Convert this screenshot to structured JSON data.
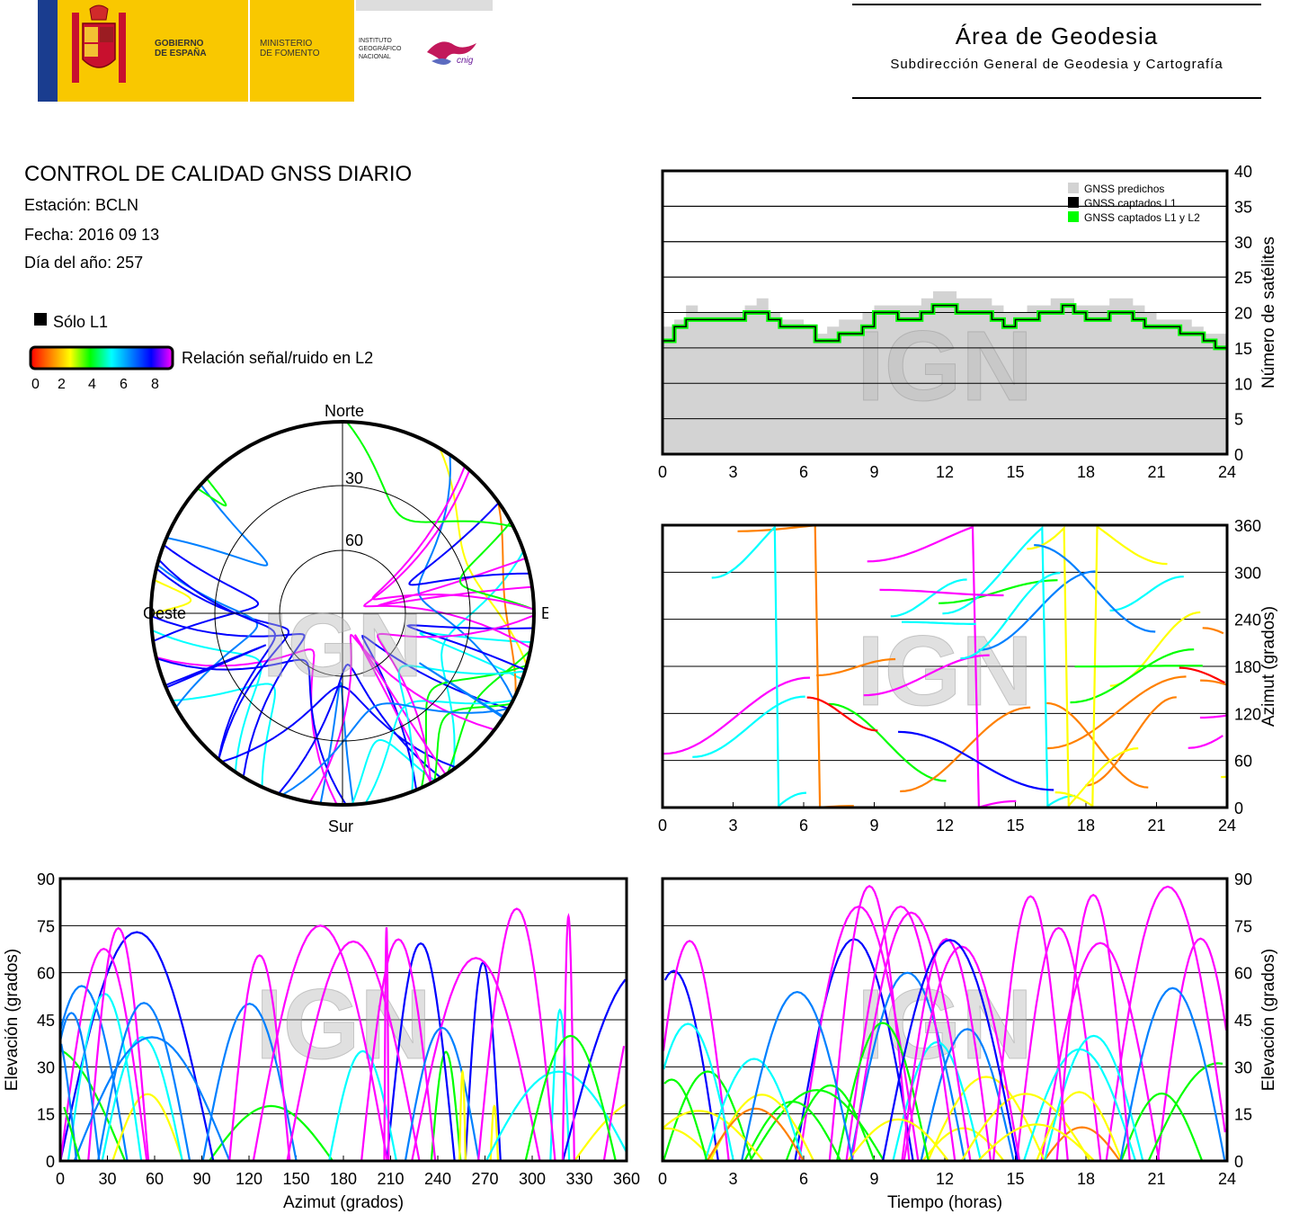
{
  "header": {
    "gobierno": "GOBIERNO\nDE ESPAÑA",
    "ministerio": "MINISTERIO\nDE FOMENTO",
    "instituto": "INSTITUTO\nGEOGRÁFICO\nNACIONAL",
    "cnig": "cnig",
    "area_title": "Área de Geodesia",
    "area_subtitle": "Subdirección General de Geodesia y Cartografía"
  },
  "info": {
    "title": "CONTROL DE CALIDAD GNSS DIARIO",
    "station": "Estación: BCLN",
    "date": "Fecha: 2016 09 13",
    "doy": "Día del año: 257"
  },
  "legend": {
    "solo_l1": "Sólo L1",
    "snr_label": "Relación señal/ruido en L2",
    "snr_ticks": [
      "0",
      "2",
      "4",
      "6",
      "8"
    ],
    "colors": [
      "#ff0000",
      "#ff8000",
      "#ffff00",
      "#00ff00",
      "#00ffff",
      "#0080ff",
      "#0000ff",
      "#ff00ff"
    ]
  },
  "watermark": "IGN",
  "chart_data": [
    {
      "type": "polar",
      "name": "skyplot",
      "directions": {
        "north": "Norte",
        "south": "Sur",
        "east": "Este",
        "west": "Oeste"
      },
      "elevation_rings": [
        "30",
        "60"
      ]
    },
    {
      "type": "step",
      "name": "satellite-count",
      "ylabel": "Número de satélites",
      "xlim": [
        0,
        24
      ],
      "ylim": [
        0,
        40
      ],
      "xticks": [
        "0",
        "3",
        "6",
        "9",
        "12",
        "15",
        "18",
        "21",
        "24"
      ],
      "yticks": [
        "0",
        "5",
        "10",
        "15",
        "20",
        "25",
        "30",
        "35",
        "40"
      ],
      "legend": [
        "GNSS predichos",
        "GNSS captados L1",
        "GNSS captados L1 y L2"
      ],
      "legend_colors": [
        "#d3d3d3",
        "#000000",
        "#00ff00"
      ],
      "series": [
        {
          "name": "GNSS predichos",
          "x": [
            0,
            0.5,
            1,
            1.5,
            2,
            2.5,
            3,
            3.5,
            4,
            4.5,
            5,
            5.5,
            6,
            6.5,
            7,
            7.5,
            8,
            8.5,
            9,
            9.5,
            10,
            10.5,
            11,
            11.5,
            12,
            12.5,
            13,
            13.5,
            14,
            14.5,
            15,
            15.5,
            16,
            16.5,
            17,
            17.5,
            18,
            18.5,
            19,
            19.5,
            20,
            20.5,
            21,
            21.5,
            22,
            22.5,
            23,
            23.5,
            24
          ],
          "values": [
            18,
            19,
            21,
            20,
            20,
            20,
            20,
            21,
            22,
            20,
            19,
            19,
            18,
            17,
            18,
            19,
            19,
            20,
            21,
            21,
            21,
            21,
            22,
            23,
            23,
            22,
            22,
            22,
            21,
            20,
            20,
            21,
            21,
            22,
            22,
            21,
            21,
            21,
            22,
            22,
            21,
            20,
            19,
            19,
            19,
            18,
            17,
            17,
            16
          ]
        },
        {
          "name": "GNSS captados L1 y L2",
          "x": [
            0,
            0.5,
            1,
            1.5,
            2,
            2.5,
            3,
            3.5,
            4,
            4.5,
            5,
            5.5,
            6,
            6.5,
            7,
            7.5,
            8,
            8.5,
            9,
            9.5,
            10,
            10.5,
            11,
            11.5,
            12,
            12.5,
            13,
            13.5,
            14,
            14.5,
            15,
            15.5,
            16,
            16.5,
            17,
            17.5,
            18,
            18.5,
            19,
            19.5,
            20,
            20.5,
            21,
            21.5,
            22,
            22.5,
            23,
            23.5,
            24
          ],
          "values": [
            16,
            18,
            19,
            19,
            19,
            19,
            19,
            20,
            20,
            19,
            18,
            18,
            18,
            16,
            16,
            17,
            17,
            18,
            20,
            20,
            19,
            19,
            20,
            21,
            21,
            20,
            20,
            20,
            19,
            18,
            19,
            19,
            20,
            20,
            21,
            20,
            19,
            19,
            20,
            20,
            19,
            18,
            18,
            18,
            17,
            17,
            16,
            15,
            15
          ]
        }
      ]
    },
    {
      "type": "scatter",
      "name": "azimuth-vs-time",
      "ylabel": "Azimut (grados)",
      "xlim": [
        0,
        24
      ],
      "ylim": [
        0,
        360
      ],
      "xticks": [
        "0",
        "3",
        "6",
        "9",
        "12",
        "15",
        "18",
        "21",
        "24"
      ],
      "yticks": [
        "0",
        "60",
        "120",
        "180",
        "240",
        "300",
        "360"
      ]
    },
    {
      "type": "scatter",
      "name": "elevation-vs-azimuth",
      "xlabel": "Azimut (grados)",
      "ylabel": "Elevación (grados)",
      "xlim": [
        0,
        360
      ],
      "ylim": [
        0,
        90
      ],
      "xticks": [
        "0",
        "30",
        "60",
        "90",
        "120",
        "150",
        "180",
        "210",
        "240",
        "270",
        "300",
        "330",
        "360"
      ],
      "yticks": [
        "0",
        "15",
        "30",
        "45",
        "60",
        "75",
        "90"
      ]
    },
    {
      "type": "scatter",
      "name": "elevation-vs-time",
      "xlabel": "Tiempo (horas)",
      "ylabel": "Elevación (grados)",
      "xlim": [
        0,
        24
      ],
      "ylim": [
        0,
        90
      ],
      "xticks": [
        "0",
        "3",
        "6",
        "9",
        "12",
        "15",
        "18",
        "21",
        "24"
      ],
      "yticks": [
        "0",
        "15",
        "30",
        "45",
        "60",
        "75",
        "90"
      ]
    }
  ]
}
